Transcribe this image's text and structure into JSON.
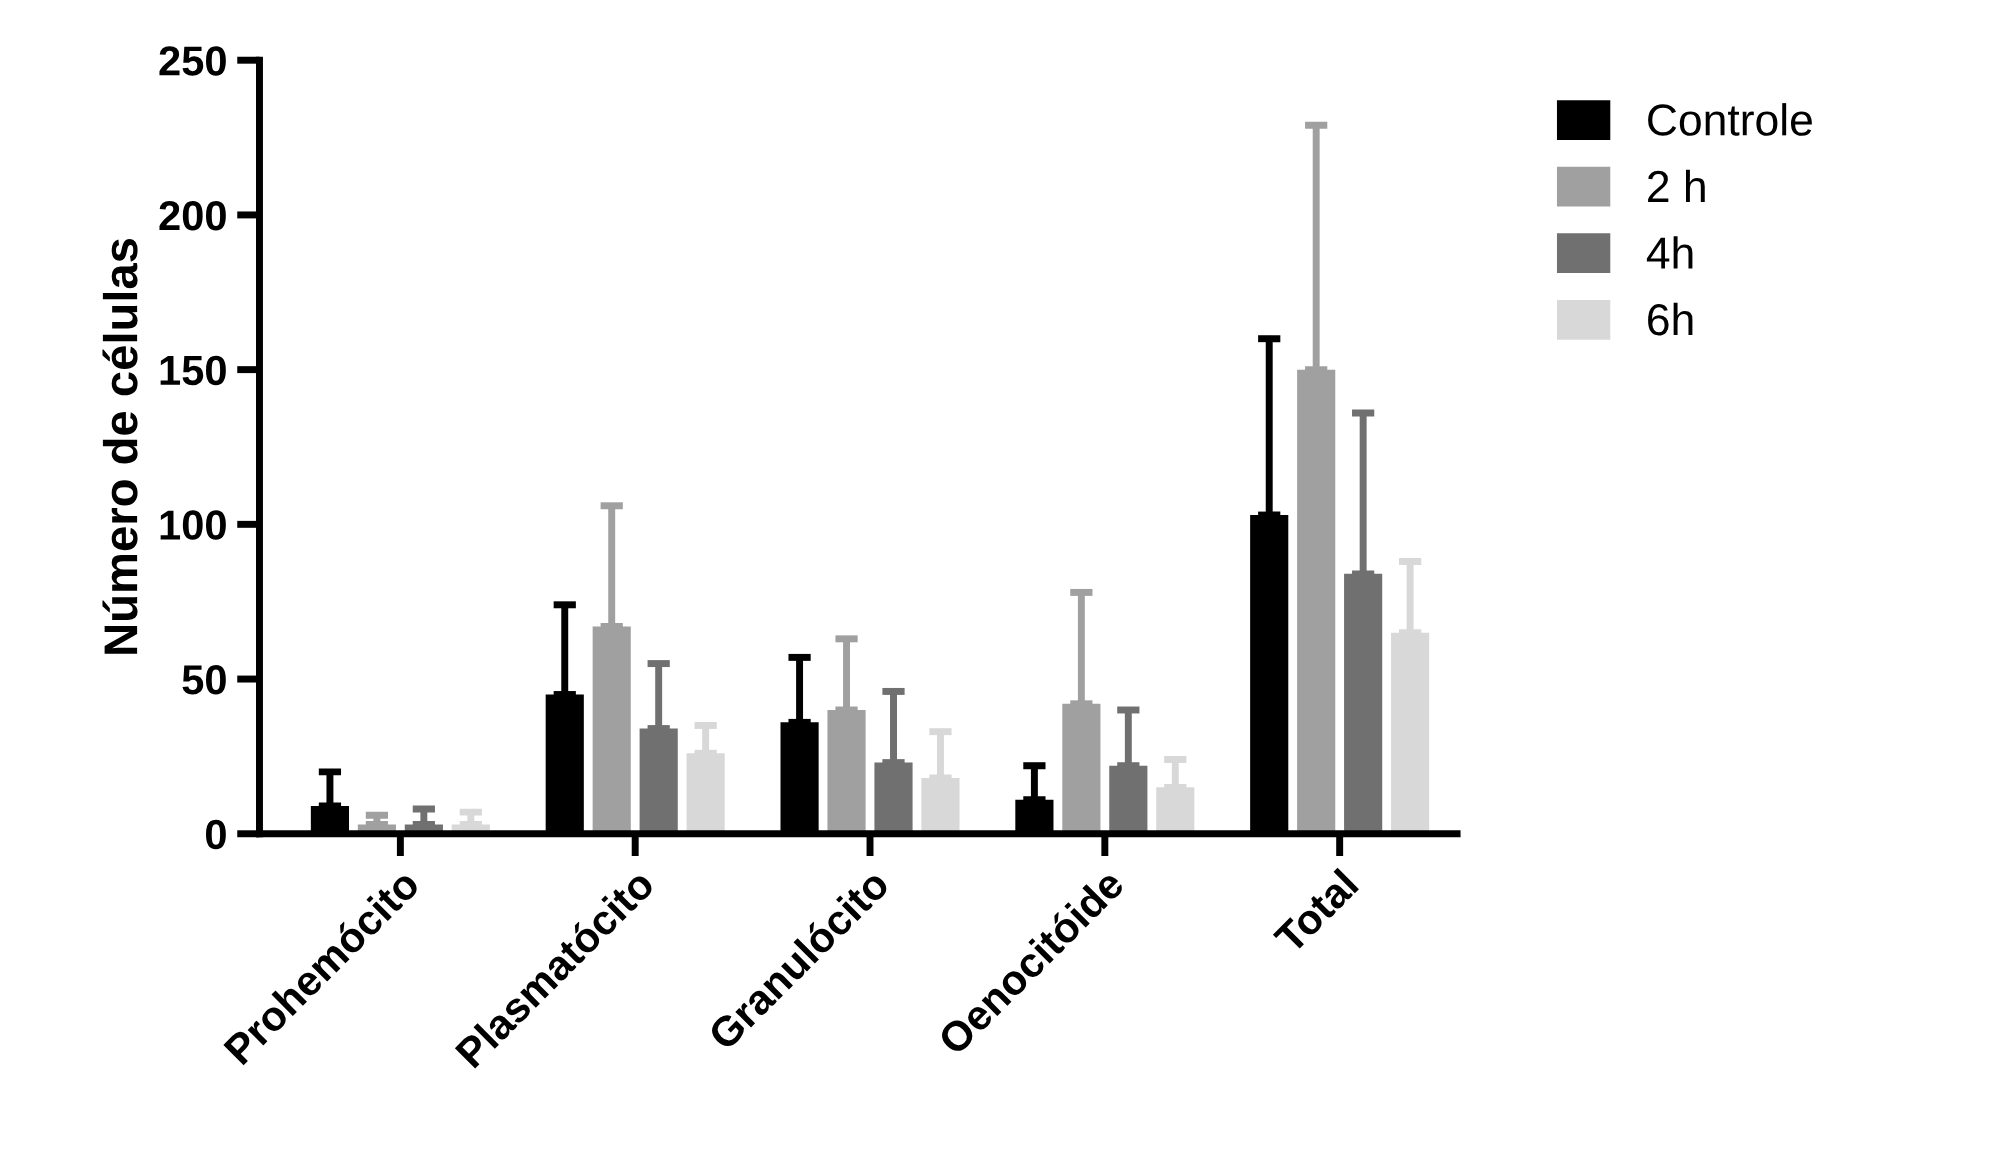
{
  "chart_data": {
    "type": "bar",
    "ylabel": "Número de células",
    "categories": [
      "Prohemócito",
      "Plasmatócito",
      "Granulócito",
      "Oenocitóide",
      "Total"
    ],
    "series": [
      {
        "name": "Controle",
        "color": "#000000",
        "values": [
          9,
          45,
          36,
          11,
          103
        ],
        "errors": [
          [
            9,
            20
          ],
          [
            45,
            74
          ],
          [
            36,
            57
          ],
          [
            11,
            22
          ],
          [
            103,
            160
          ]
        ]
      },
      {
        "name": "2 h",
        "color": "#a0a0a0",
        "values": [
          3,
          67,
          40,
          42,
          150
        ],
        "errors": [
          [
            3,
            6
          ],
          [
            67,
            106
          ],
          [
            40,
            63
          ],
          [
            42,
            78
          ],
          [
            150,
            229
          ]
        ]
      },
      {
        "name": "4h",
        "color": "#707070",
        "values": [
          3,
          34,
          23,
          22,
          84
        ],
        "errors": [
          [
            3,
            8
          ],
          [
            34,
            55
          ],
          [
            23,
            46
          ],
          [
            22,
            40
          ],
          [
            84,
            136
          ]
        ]
      },
      {
        "name": "6h",
        "color": "#d8d8d8",
        "values": [
          3,
          26,
          18,
          15,
          65
        ],
        "errors": [
          [
            3,
            7
          ],
          [
            26,
            35
          ],
          [
            18,
            33
          ],
          [
            15,
            24
          ],
          [
            65,
            88
          ]
        ]
      }
    ],
    "ylim": [
      0,
      250
    ],
    "yticks": [
      0,
      50,
      100,
      150,
      200,
      250
    ],
    "grid": false,
    "legend": "top right"
  }
}
